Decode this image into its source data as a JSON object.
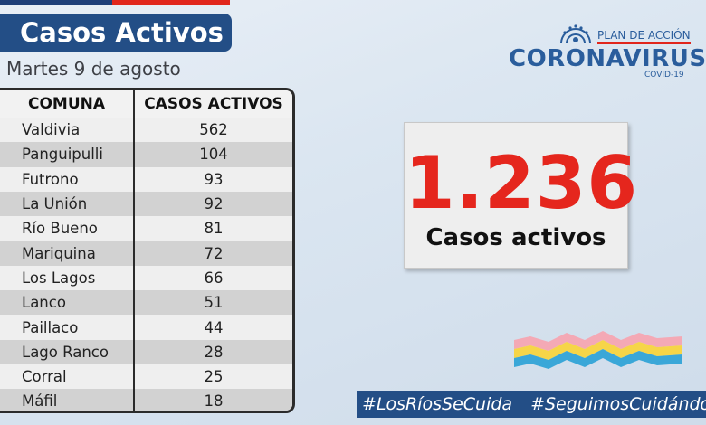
{
  "header": {
    "title": "Casos Activos",
    "date": "Martes 9 de agosto"
  },
  "table": {
    "columns": [
      "COMUNA",
      "CASOS ACTIVOS"
    ],
    "rows": [
      {
        "comuna": "Valdivia",
        "casos": "562"
      },
      {
        "comuna": "Panguipulli",
        "casos": "104"
      },
      {
        "comuna": "Futrono",
        "casos": "93"
      },
      {
        "comuna": "La Unión",
        "casos": "92"
      },
      {
        "comuna": "Río Bueno",
        "casos": "81"
      },
      {
        "comuna": "Mariquina",
        "casos": "72"
      },
      {
        "comuna": "Los Lagos",
        "casos": "66"
      },
      {
        "comuna": "Lanco",
        "casos": "51"
      },
      {
        "comuna": "Paillaco",
        "casos": "44"
      },
      {
        "comuna": "Lago Ranco",
        "casos": "28"
      },
      {
        "comuna": "Corral",
        "casos": "25"
      },
      {
        "comuna": "Máfil",
        "casos": "18"
      }
    ]
  },
  "logo": {
    "plan": "PLAN DE ACCIÓN",
    "name": "CORONAVIRUS",
    "sub": "COVID-19",
    "icon": "virus-icon"
  },
  "total": {
    "value": "1.236",
    "label": "Casos activos"
  },
  "hashtags": [
    "#LosRíosSeCuida",
    "#SeguimosCuidándonos"
  ],
  "colors": {
    "brand_blue": "#234e86",
    "accent_red": "#e5261d",
    "wave_pink": "#f4a9b5",
    "wave_yellow": "#f6d548",
    "wave_blue": "#3aa7d8"
  }
}
